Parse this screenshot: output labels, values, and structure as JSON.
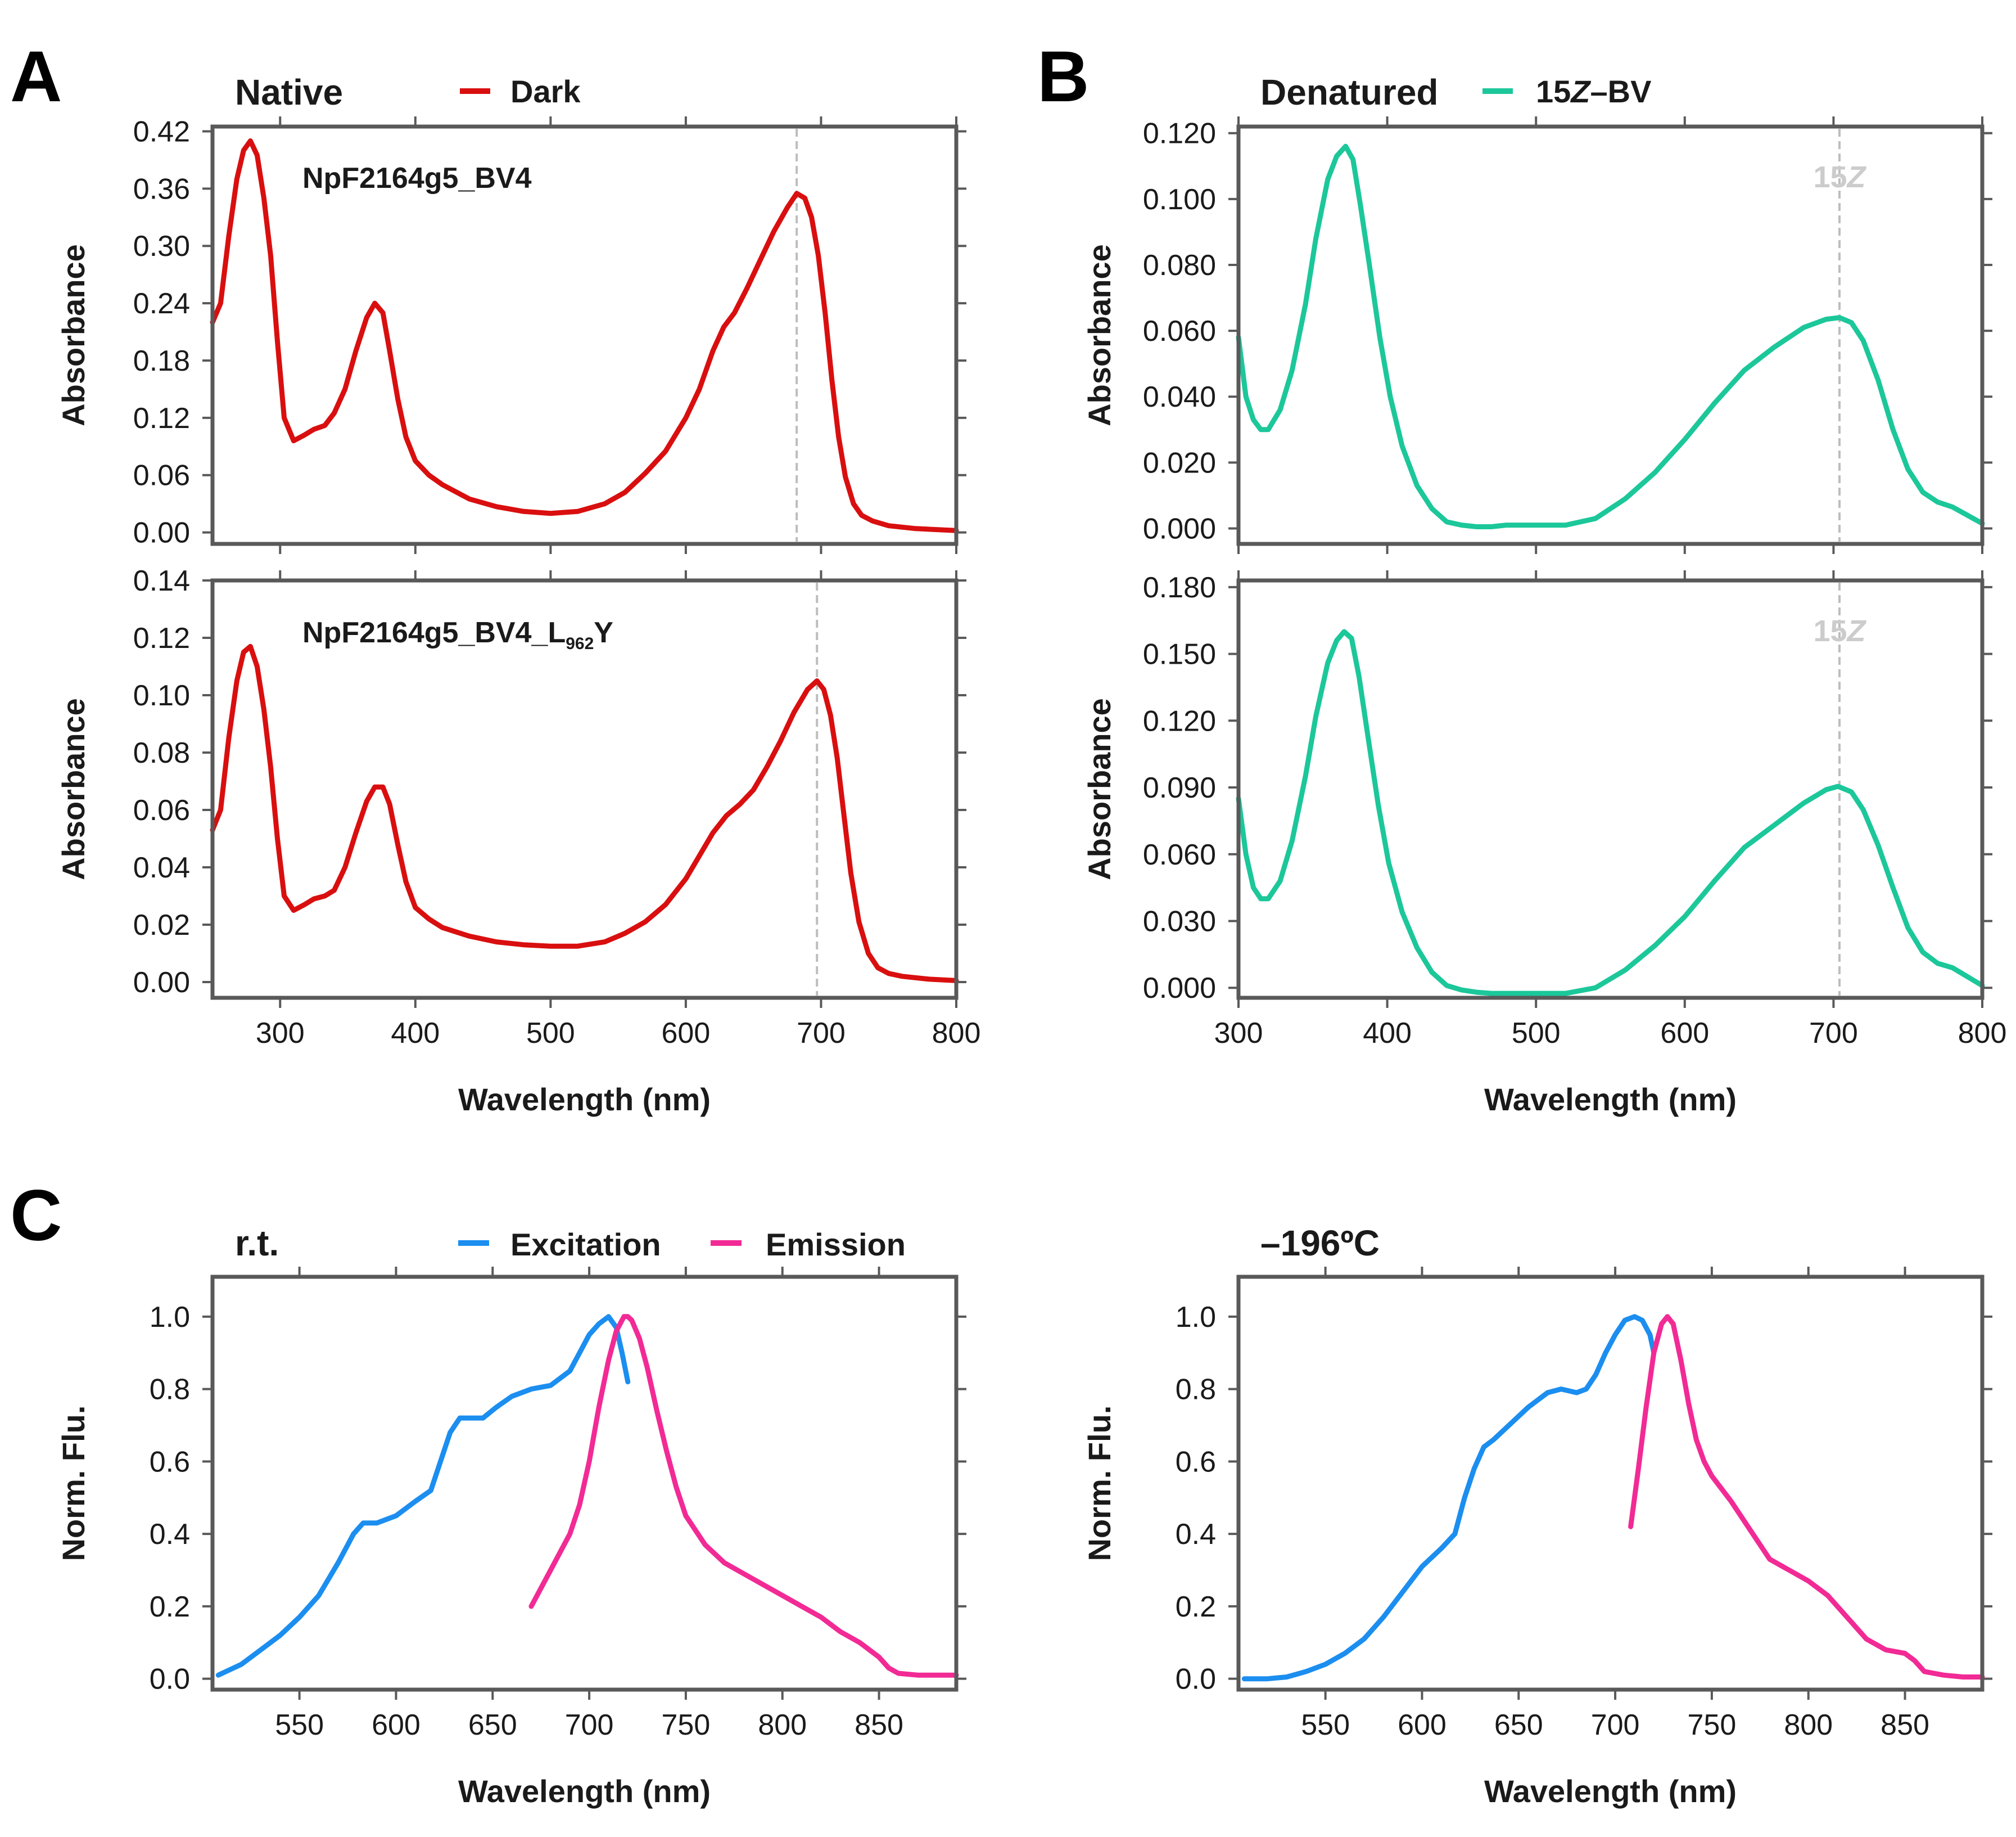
{
  "panels": [
    {
      "letter": "A"
    },
    {
      "letter": "B"
    },
    {
      "letter": "C"
    }
  ],
  "colors": {
    "dark": "#d90f0f",
    "bv": "#1cc79a",
    "excitation": "#1b8ef0",
    "emission": "#f22a95",
    "frame": "#595959",
    "refline": "#bdbdbd",
    "isomer_label": "#cccccc"
  },
  "chart_data": [
    {
      "id": "A1",
      "type": "line",
      "title": "Native",
      "legend": [
        {
          "name": "Dark",
          "color": "#d90f0f"
        }
      ],
      "sample_label": "NpF2164g5_BV4",
      "ylabel": "Absorbance",
      "xlabel": "",
      "xlim": [
        250,
        800
      ],
      "ylim": [
        -0.012,
        0.425
      ],
      "xticks": [
        300,
        400,
        500,
        600,
        700,
        800
      ],
      "yticks": [
        0.0,
        0.06,
        0.12,
        0.18,
        0.24,
        0.3,
        0.36,
        0.42
      ],
      "ytick_labels": [
        "0.00",
        "0.06",
        "0.12",
        "0.18",
        "0.24",
        "0.30",
        "0.36",
        "0.42"
      ],
      "show_xtick_labels": false,
      "refline_x": 682,
      "series": [
        {
          "name": "Dark",
          "color": "#d90f0f",
          "x": [
            250,
            256,
            262,
            268,
            273,
            278,
            283,
            288,
            293,
            298,
            303,
            310,
            318,
            325,
            333,
            340,
            348,
            356,
            364,
            370,
            376,
            381,
            387,
            393,
            400,
            410,
            420,
            440,
            460,
            480,
            500,
            520,
            540,
            555,
            570,
            585,
            600,
            610,
            620,
            628,
            636,
            645,
            655,
            665,
            675,
            682,
            688,
            693,
            698,
            703,
            708,
            713,
            718,
            724,
            730,
            738,
            750,
            770,
            800
          ],
          "y": [
            0.22,
            0.24,
            0.31,
            0.37,
            0.4,
            0.41,
            0.395,
            0.35,
            0.29,
            0.2,
            0.12,
            0.096,
            0.102,
            0.108,
            0.112,
            0.125,
            0.15,
            0.19,
            0.225,
            0.24,
            0.23,
            0.19,
            0.14,
            0.1,
            0.075,
            0.06,
            0.05,
            0.035,
            0.027,
            0.022,
            0.02,
            0.022,
            0.03,
            0.042,
            0.062,
            0.085,
            0.12,
            0.15,
            0.19,
            0.215,
            0.23,
            0.255,
            0.285,
            0.315,
            0.34,
            0.355,
            0.35,
            0.33,
            0.29,
            0.23,
            0.16,
            0.1,
            0.058,
            0.03,
            0.018,
            0.012,
            0.007,
            0.004,
            0.002
          ]
        }
      ]
    },
    {
      "id": "A2",
      "type": "line",
      "title": "",
      "legend": [],
      "sample_label": "NpF2164g5_BV4_L",
      "sample_subscript": "962",
      "sample_suffix": "Y",
      "ylabel": "Absorbance",
      "xlabel": "Wavelength (nm)",
      "xlim": [
        250,
        800
      ],
      "ylim": [
        -0.0055,
        0.14
      ],
      "xticks": [
        300,
        400,
        500,
        600,
        700,
        800
      ],
      "yticks": [
        0.0,
        0.02,
        0.04,
        0.06,
        0.08,
        0.1,
        0.12,
        0.14
      ],
      "ytick_labels": [
        "0.00",
        "0.02",
        "0.04",
        "0.06",
        "0.08",
        "0.10",
        "0.12",
        "0.14"
      ],
      "show_xtick_labels": true,
      "refline_x": 697,
      "series": [
        {
          "name": "Dark",
          "color": "#d90f0f",
          "x": [
            250,
            256,
            262,
            268,
            273,
            278,
            283,
            288,
            293,
            298,
            303,
            310,
            318,
            325,
            333,
            340,
            348,
            356,
            364,
            370,
            376,
            381,
            387,
            393,
            400,
            410,
            420,
            440,
            460,
            480,
            500,
            520,
            540,
            555,
            570,
            585,
            600,
            610,
            620,
            630,
            640,
            650,
            660,
            670,
            680,
            690,
            697,
            702,
            707,
            712,
            717,
            722,
            728,
            735,
            742,
            750,
            760,
            780,
            800
          ],
          "y": [
            0.053,
            0.06,
            0.085,
            0.105,
            0.115,
            0.117,
            0.11,
            0.095,
            0.075,
            0.05,
            0.03,
            0.025,
            0.027,
            0.029,
            0.03,
            0.032,
            0.04,
            0.052,
            0.063,
            0.068,
            0.068,
            0.062,
            0.048,
            0.035,
            0.026,
            0.022,
            0.019,
            0.016,
            0.014,
            0.013,
            0.0125,
            0.0125,
            0.014,
            0.017,
            0.021,
            0.027,
            0.036,
            0.044,
            0.052,
            0.058,
            0.062,
            0.067,
            0.075,
            0.084,
            0.094,
            0.102,
            0.105,
            0.102,
            0.093,
            0.078,
            0.058,
            0.038,
            0.021,
            0.01,
            0.005,
            0.003,
            0.002,
            0.001,
            0.0005
          ]
        }
      ]
    },
    {
      "id": "B1",
      "type": "line",
      "title": "Denatured",
      "legend": [
        {
          "name": "15Z–BV",
          "color": "#1cc79a"
        }
      ],
      "legend_parts": [
        "15",
        "Z",
        "–BV"
      ],
      "sample_label": "",
      "ylabel": "Absorbance",
      "xlabel": "",
      "xlim": [
        300,
        800
      ],
      "ylim": [
        -0.0047,
        0.122
      ],
      "xticks": [
        300,
        400,
        500,
        600,
        700,
        800
      ],
      "yticks": [
        0.0,
        0.02,
        0.04,
        0.06,
        0.08,
        0.1,
        0.12
      ],
      "ytick_labels": [
        "0.000",
        "0.020",
        "0.040",
        "0.060",
        "0.080",
        "0.100",
        "0.120"
      ],
      "show_xtick_labels": false,
      "refline_x": 704,
      "isomer_label_parts": [
        "15",
        "Z"
      ],
      "series": [
        {
          "name": "15Z–BV",
          "color": "#1cc79a",
          "x": [
            300,
            305,
            310,
            315,
            320,
            328,
            336,
            345,
            352,
            360,
            366,
            372,
            377,
            382,
            388,
            395,
            402,
            410,
            420,
            430,
            440,
            450,
            460,
            470,
            480,
            500,
            520,
            540,
            560,
            580,
            600,
            620,
            640,
            660,
            680,
            695,
            704,
            712,
            720,
            730,
            740,
            750,
            760,
            770,
            780,
            790,
            800
          ],
          "y": [
            0.058,
            0.04,
            0.033,
            0.03,
            0.03,
            0.036,
            0.048,
            0.068,
            0.088,
            0.106,
            0.113,
            0.116,
            0.112,
            0.098,
            0.08,
            0.058,
            0.04,
            0.025,
            0.013,
            0.006,
            0.002,
            0.001,
            0.0005,
            0.0005,
            0.001,
            0.001,
            0.001,
            0.003,
            0.009,
            0.017,
            0.027,
            0.038,
            0.048,
            0.055,
            0.061,
            0.0635,
            0.064,
            0.0625,
            0.057,
            0.045,
            0.03,
            0.018,
            0.011,
            0.008,
            0.0065,
            0.004,
            0.0015
          ]
        }
      ]
    },
    {
      "id": "B2",
      "type": "line",
      "title": "",
      "legend": [],
      "sample_label": "",
      "ylabel": "Absorbance",
      "xlabel": "Wavelength (nm)",
      "xlim": [
        300,
        800
      ],
      "ylim": [
        -0.0045,
        0.183
      ],
      "xticks": [
        300,
        400,
        500,
        600,
        700,
        800
      ],
      "yticks": [
        0.0,
        0.03,
        0.06,
        0.09,
        0.12,
        0.15,
        0.18
      ],
      "ytick_labels": [
        "0.000",
        "0.030",
        "0.060",
        "0.090",
        "0.120",
        "0.150",
        "0.180"
      ],
      "show_xtick_labels": true,
      "refline_x": 704,
      "isomer_label_parts": [
        "15",
        "Z"
      ],
      "series": [
        {
          "name": "15Z–BV",
          "color": "#1cc79a",
          "x": [
            300,
            305,
            310,
            315,
            320,
            328,
            336,
            345,
            352,
            360,
            366,
            371,
            376,
            381,
            387,
            394,
            401,
            410,
            420,
            430,
            440,
            450,
            460,
            470,
            480,
            500,
            520,
            540,
            560,
            580,
            600,
            620,
            640,
            660,
            680,
            695,
            703,
            712,
            720,
            730,
            740,
            750,
            760,
            770,
            780,
            790,
            800
          ],
          "y": [
            0.085,
            0.06,
            0.045,
            0.04,
            0.04,
            0.048,
            0.066,
            0.095,
            0.122,
            0.146,
            0.156,
            0.16,
            0.157,
            0.14,
            0.113,
            0.082,
            0.056,
            0.034,
            0.018,
            0.007,
            0.001,
            -0.001,
            -0.002,
            -0.0025,
            -0.0025,
            -0.0025,
            -0.0025,
            0.0,
            0.008,
            0.019,
            0.032,
            0.048,
            0.063,
            0.073,
            0.083,
            0.089,
            0.0905,
            0.088,
            0.08,
            0.064,
            0.045,
            0.027,
            0.016,
            0.011,
            0.009,
            0.005,
            0.001
          ]
        }
      ]
    },
    {
      "id": "C1",
      "type": "line",
      "title": "r.t.",
      "legend": [
        {
          "name": "Excitation",
          "color": "#1b8ef0"
        },
        {
          "name": "Emission",
          "color": "#f22a95"
        }
      ],
      "sample_label": "",
      "ylabel": "Norm. Flu.",
      "xlabel": "Wavelength (nm)",
      "xlim": [
        505,
        890
      ],
      "ylim": [
        -0.03,
        1.11
      ],
      "xticks": [
        550,
        600,
        650,
        700,
        750,
        800,
        850
      ],
      "yticks": [
        0.0,
        0.2,
        0.4,
        0.6,
        0.8,
        1.0
      ],
      "ytick_labels": [
        "0.0",
        "0.2",
        "0.4",
        "0.6",
        "0.8",
        "1.0"
      ],
      "show_xtick_labels": true,
      "series": [
        {
          "name": "Excitation",
          "color": "#1b8ef0",
          "x": [
            508,
            520,
            530,
            540,
            550,
            560,
            570,
            578,
            583,
            590,
            600,
            610,
            618,
            623,
            628,
            633,
            638,
            645,
            652,
            660,
            670,
            680,
            690,
            695,
            700,
            705,
            710,
            714,
            717,
            720
          ],
          "y": [
            0.01,
            0.04,
            0.08,
            0.12,
            0.17,
            0.23,
            0.32,
            0.4,
            0.43,
            0.43,
            0.45,
            0.49,
            0.52,
            0.6,
            0.68,
            0.72,
            0.72,
            0.72,
            0.75,
            0.78,
            0.8,
            0.81,
            0.85,
            0.9,
            0.95,
            0.98,
            1.0,
            0.97,
            0.9,
            0.82
          ]
        },
        {
          "name": "Emission",
          "color": "#f22a95",
          "x": [
            670,
            680,
            690,
            695,
            700,
            705,
            710,
            714,
            718,
            720,
            722,
            726,
            730,
            735,
            740,
            745,
            750,
            760,
            770,
            780,
            790,
            800,
            810,
            820,
            830,
            840,
            850,
            855,
            860,
            870,
            880,
            890
          ],
          "y": [
            0.2,
            0.3,
            0.4,
            0.48,
            0.6,
            0.75,
            0.88,
            0.96,
            1.0,
            1.0,
            0.99,
            0.94,
            0.86,
            0.74,
            0.63,
            0.53,
            0.45,
            0.37,
            0.32,
            0.29,
            0.26,
            0.23,
            0.2,
            0.17,
            0.13,
            0.1,
            0.06,
            0.03,
            0.015,
            0.01,
            0.01,
            0.01
          ]
        }
      ]
    },
    {
      "id": "C2",
      "type": "line",
      "title": "–196ºC",
      "legend": [],
      "sample_label": "",
      "ylabel": "Norm. Flu.",
      "xlabel": "Wavelength (nm)",
      "xlim": [
        505,
        890
      ],
      "ylim": [
        -0.03,
        1.11
      ],
      "xticks": [
        550,
        600,
        650,
        700,
        750,
        800,
        850
      ],
      "yticks": [
        0.0,
        0.2,
        0.4,
        0.6,
        0.8,
        1.0
      ],
      "ytick_labels": [
        "0.0",
        "0.2",
        "0.4",
        "0.6",
        "0.8",
        "1.0"
      ],
      "show_xtick_labels": true,
      "series": [
        {
          "name": "Excitation",
          "color": "#1b8ef0",
          "x": [
            508,
            520,
            530,
            540,
            550,
            560,
            570,
            580,
            590,
            600,
            610,
            617,
            622,
            627,
            632,
            637,
            645,
            655,
            665,
            672,
            680,
            685,
            690,
            695,
            700,
            705,
            710,
            714,
            718,
            720
          ],
          "y": [
            0.0,
            0.0,
            0.005,
            0.02,
            0.04,
            0.07,
            0.11,
            0.17,
            0.24,
            0.31,
            0.36,
            0.4,
            0.5,
            0.58,
            0.64,
            0.66,
            0.7,
            0.75,
            0.79,
            0.8,
            0.79,
            0.8,
            0.84,
            0.9,
            0.95,
            0.99,
            1.0,
            0.99,
            0.95,
            0.9
          ]
        },
        {
          "name": "Emission",
          "color": "#f22a95",
          "x": [
            708,
            712,
            716,
            720,
            724,
            727,
            730,
            734,
            738,
            742,
            746,
            750,
            760,
            770,
            780,
            790,
            800,
            810,
            820,
            830,
            840,
            850,
            855,
            860,
            870,
            880,
            890
          ],
          "y": [
            0.42,
            0.58,
            0.75,
            0.9,
            0.98,
            1.0,
            0.98,
            0.88,
            0.76,
            0.66,
            0.6,
            0.56,
            0.49,
            0.41,
            0.33,
            0.3,
            0.27,
            0.23,
            0.17,
            0.11,
            0.08,
            0.07,
            0.05,
            0.02,
            0.01,
            0.005,
            0.005
          ]
        }
      ]
    }
  ]
}
